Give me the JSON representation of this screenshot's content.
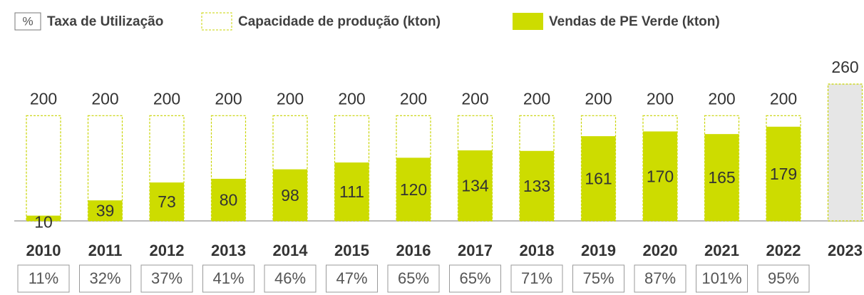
{
  "chart_data": {
    "type": "bar",
    "categories": [
      "2010",
      "2011",
      "2012",
      "2013",
      "2014",
      "2015",
      "2016",
      "2017",
      "2018",
      "2019",
      "2020",
      "2021",
      "2022",
      "2023"
    ],
    "series": [
      {
        "name": "Capacidade de produção (kton)",
        "color": "#c8d400",
        "fills": [
          "#ffffff",
          "#ffffff",
          "#ffffff",
          "#ffffff",
          "#ffffff",
          "#ffffff",
          "#ffffff",
          "#ffffff",
          "#ffffff",
          "#ffffff",
          "#ffffff",
          "#ffffff",
          "#ffffff",
          "#e6e6e6"
        ],
        "values": [
          200,
          200,
          200,
          200,
          200,
          200,
          200,
          200,
          200,
          200,
          200,
          200,
          200,
          260
        ]
      },
      {
        "name": "Vendas de PE Verde (kton)",
        "color": "#cddc00",
        "values": [
          10,
          39,
          73,
          80,
          98,
          111,
          120,
          134,
          133,
          161,
          170,
          165,
          179,
          null
        ]
      }
    ],
    "utilization": {
      "name": "Taxa de Utilização",
      "symbol": "%",
      "values": [
        11,
        32,
        37,
        41,
        46,
        47,
        65,
        65,
        71,
        75,
        87,
        101,
        95,
        null
      ],
      "value_labels": [
        "11%",
        "32%",
        "37%",
        "41%",
        "46%",
        "47%",
        "65%",
        "65%",
        "71%",
        "75%",
        "87%",
        "101%",
        "95%",
        null
      ]
    },
    "ylim": [
      0,
      260
    ]
  }
}
